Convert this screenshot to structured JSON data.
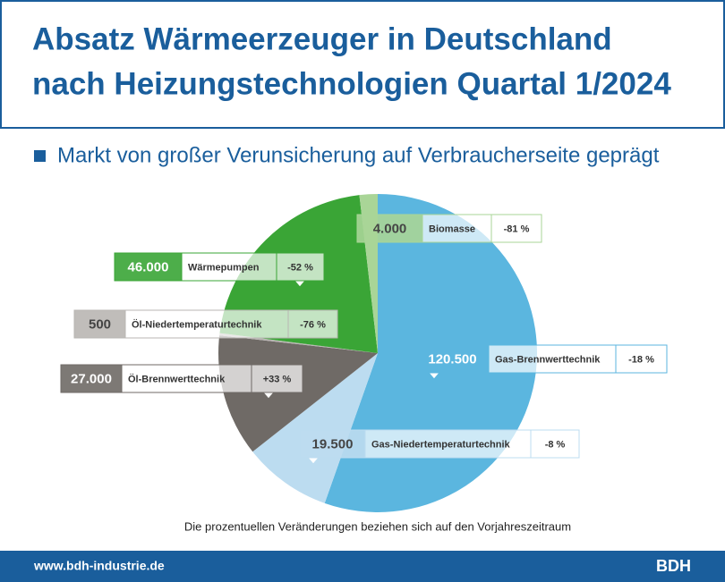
{
  "header": {
    "title": [
      "Absatz Wärmeerzeuger in Deutschland",
      "nach Heizungstechnologien Quartal 1/2024"
    ]
  },
  "chart_data": {
    "type": "pie",
    "subtitle": "Markt von großer Verunsicherung auf Verbraucherseite geprägt",
    "categories": [
      "Gas-Brennwerttechnik",
      "Gas-Niedertemperaturtechnik",
      "Öl-Brennwerttechnik",
      "Öl-Niedertemperaturtechnik",
      "Wärmepumpen",
      "Biomasse"
    ],
    "values": [
      120500,
      19500,
      27000,
      500,
      46000,
      4000
    ],
    "value_labels": [
      "120.500",
      "19.500",
      "27.000",
      "500",
      "46.000",
      "4.000"
    ],
    "change_labels": [
      "-18 %",
      "-8 %",
      "+33 %",
      "-76 %",
      "-52 %",
      "-81 %"
    ],
    "colors": [
      "#5bb6df",
      "#bcdcf0",
      "#6f6a66",
      "#b9b6b3",
      "#3aa536",
      "#a9d597"
    ],
    "note": "Die prozentuellen Veränderungen beziehen sich auf den Vorjahreszeitraum"
  },
  "footer": {
    "url": "www.bdh-industrie.de",
    "brand": "BDH"
  }
}
